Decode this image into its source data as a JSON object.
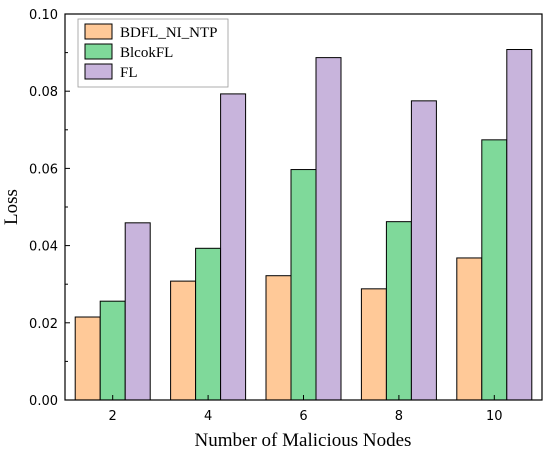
{
  "chart_data": {
    "type": "bar",
    "xlabel": "Number of Malicious Nodes",
    "ylabel": "Loss",
    "categories": [
      "2",
      "4",
      "6",
      "8",
      "10"
    ],
    "ylim": [
      0,
      0.1
    ],
    "yticks": [
      "0.00",
      "0.02",
      "0.04",
      "0.06",
      "0.08",
      "0.10"
    ],
    "legend_position": "top-left",
    "grid": false,
    "series": [
      {
        "name": "BDFL_NI_NTP",
        "color": "#FFC998",
        "values": [
          0.0215,
          0.0308,
          0.0322,
          0.0288,
          0.0368
        ]
      },
      {
        "name": "BlcokFL",
        "color": "#7FD99A",
        "values": [
          0.0256,
          0.0393,
          0.0597,
          0.0462,
          0.0674
        ]
      },
      {
        "name": "FL",
        "color": "#C8B4DC",
        "values": [
          0.0459,
          0.0793,
          0.0887,
          0.0775,
          0.0908
        ]
      }
    ]
  }
}
